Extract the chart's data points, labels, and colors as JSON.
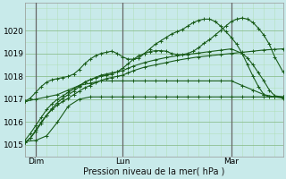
{
  "background_color": "#c8eaea",
  "grid_major_color": "#88bb88",
  "grid_minor_color": "#aaddaa",
  "line_color": "#1a5c1a",
  "vline_color": "#666666",
  "xlabel": "Pression niveau de la mer( hPa )",
  "ylim": [
    1014.5,
    1021.2
  ],
  "xlim": [
    0,
    95
  ],
  "yticks": [
    1015,
    1016,
    1017,
    1018,
    1019,
    1020
  ],
  "xtick_positions": [
    4,
    36,
    76
  ],
  "xticklabels": [
    "Dim",
    "Lun",
    "Mar"
  ],
  "vline_positions": [
    4,
    36,
    76
  ],
  "series": [
    {
      "x": [
        0,
        4,
        8,
        12,
        16,
        20,
        24,
        28,
        32,
        36,
        40,
        44,
        48,
        52,
        56,
        60,
        64,
        68,
        72,
        76,
        80,
        84,
        88,
        92,
        95
      ],
      "y": [
        1015.15,
        1015.2,
        1015.4,
        1016.0,
        1016.7,
        1017.0,
        1017.1,
        1017.1,
        1017.1,
        1017.1,
        1017.1,
        1017.1,
        1017.1,
        1017.1,
        1017.1,
        1017.1,
        1017.1,
        1017.1,
        1017.1,
        1017.1,
        1017.1,
        1017.1,
        1017.1,
        1017.1,
        1017.1
      ]
    },
    {
      "x": [
        0,
        4,
        8,
        12,
        16,
        20,
        24,
        28,
        32,
        36,
        40,
        44,
        48,
        52,
        56,
        60,
        64,
        68,
        72,
        76,
        80,
        84,
        88,
        92,
        95
      ],
      "y": [
        1016.9,
        1017.0,
        1017.1,
        1017.2,
        1017.4,
        1017.6,
        1017.7,
        1017.8,
        1017.8,
        1017.8,
        1017.8,
        1017.8,
        1017.8,
        1017.8,
        1017.8,
        1017.8,
        1017.8,
        1017.8,
        1017.8,
        1017.8,
        1017.6,
        1017.4,
        1017.2,
        1017.1,
        1017.05
      ]
    },
    {
      "x": [
        0,
        2,
        4,
        6,
        8,
        10,
        12,
        14,
        16,
        18,
        20,
        22,
        24,
        26,
        28,
        30,
        32,
        34,
        36,
        38,
        40,
        44,
        48,
        52,
        56,
        60,
        64,
        68,
        72,
        76,
        80,
        84,
        88,
        92,
        95
      ],
      "y": [
        1015.1,
        1015.3,
        1015.6,
        1015.95,
        1016.3,
        1016.55,
        1016.75,
        1016.9,
        1017.05,
        1017.2,
        1017.35,
        1017.5,
        1017.6,
        1017.72,
        1017.82,
        1017.9,
        1017.95,
        1018.0,
        1018.05,
        1018.15,
        1018.25,
        1018.4,
        1018.5,
        1018.6,
        1018.7,
        1018.78,
        1018.85,
        1018.9,
        1018.95,
        1019.0,
        1019.05,
        1019.1,
        1019.15,
        1019.18,
        1019.2
      ]
    },
    {
      "x": [
        0,
        2,
        4,
        6,
        8,
        10,
        12,
        14,
        16,
        18,
        20,
        22,
        24,
        26,
        28,
        30,
        32,
        34,
        36,
        38,
        40,
        44,
        48,
        52,
        56,
        60,
        64,
        68,
        72,
        76,
        80,
        82,
        84,
        86,
        88,
        90,
        92,
        95
      ],
      "y": [
        1015.2,
        1015.5,
        1015.85,
        1016.2,
        1016.55,
        1016.8,
        1017.0,
        1017.15,
        1017.3,
        1017.45,
        1017.6,
        1017.73,
        1017.85,
        1017.95,
        1018.05,
        1018.1,
        1018.15,
        1018.2,
        1018.25,
        1018.35,
        1018.45,
        1018.6,
        1018.72,
        1018.82,
        1018.9,
        1018.96,
        1019.02,
        1019.08,
        1019.14,
        1019.2,
        1019.0,
        1018.8,
        1018.5,
        1018.15,
        1017.8,
        1017.4,
        1017.15,
        1017.1
      ]
    },
    {
      "x": [
        0,
        2,
        4,
        6,
        8,
        10,
        12,
        14,
        16,
        18,
        20,
        22,
        24,
        26,
        28,
        30,
        32,
        34,
        36,
        38,
        40,
        42,
        44,
        46,
        48,
        50,
        52,
        54,
        56,
        58,
        60,
        62,
        64,
        66,
        68,
        70,
        72,
        74,
        76,
        78,
        80,
        82,
        84,
        86,
        88,
        90,
        92,
        95
      ],
      "y": [
        1016.9,
        1017.05,
        1017.3,
        1017.55,
        1017.75,
        1017.85,
        1017.9,
        1017.95,
        1018.0,
        1018.1,
        1018.3,
        1018.55,
        1018.75,
        1018.9,
        1019.0,
        1019.05,
        1019.1,
        1019.0,
        1018.85,
        1018.75,
        1018.75,
        1018.8,
        1019.0,
        1019.2,
        1019.4,
        1019.55,
        1019.7,
        1019.85,
        1019.95,
        1020.05,
        1020.2,
        1020.35,
        1020.45,
        1020.5,
        1020.5,
        1020.4,
        1020.2,
        1019.95,
        1019.7,
        1019.4,
        1019.0,
        1018.5,
        1018.0,
        1017.55,
        1017.2,
        1017.1,
        1017.1,
        1017.1
      ]
    },
    {
      "x": [
        0,
        2,
        4,
        6,
        8,
        10,
        12,
        14,
        16,
        18,
        20,
        22,
        24,
        26,
        28,
        30,
        32,
        34,
        36,
        38,
        40,
        42,
        44,
        46,
        48,
        50,
        52,
        54,
        56,
        58,
        60,
        62,
        64,
        66,
        68,
        70,
        72,
        74,
        76,
        78,
        80,
        82,
        84,
        86,
        88,
        90,
        92,
        95
      ],
      "y": [
        1015.1,
        1015.3,
        1015.65,
        1016.0,
        1016.3,
        1016.6,
        1016.85,
        1017.05,
        1017.2,
        1017.35,
        1017.55,
        1017.75,
        1017.85,
        1017.93,
        1018.0,
        1018.05,
        1018.1,
        1018.2,
        1018.35,
        1018.55,
        1018.75,
        1018.9,
        1019.0,
        1019.08,
        1019.12,
        1019.12,
        1019.1,
        1019.0,
        1018.95,
        1018.95,
        1019.0,
        1019.1,
        1019.25,
        1019.45,
        1019.6,
        1019.8,
        1020.0,
        1020.2,
        1020.4,
        1020.5,
        1020.55,
        1020.5,
        1020.35,
        1020.1,
        1019.8,
        1019.4,
        1018.85,
        1018.2
      ]
    }
  ]
}
